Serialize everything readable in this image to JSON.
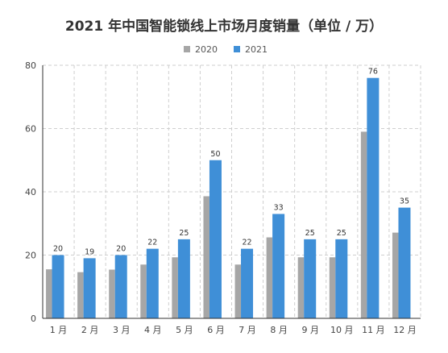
{
  "chart_data": {
    "type": "bar",
    "title": "2021 年中国智能锁线上市场月度销量（单位 / 万）",
    "categories": [
      "1 月",
      "2 月",
      "3 月",
      "4 月",
      "5 月",
      "6 月",
      "7 月",
      "8 月",
      "9 月",
      "10 月",
      "11 月",
      "12 月"
    ],
    "series": [
      {
        "name": "2020",
        "color": "#a6a6a6",
        "values": [
          15.5,
          14.6,
          15.4,
          17,
          19.3,
          38.6,
          17,
          25.6,
          19.3,
          19.3,
          59,
          27.1
        ],
        "labels": false
      },
      {
        "name": "2021",
        "color": "#3f8fd7",
        "values": [
          20,
          19,
          20,
          22,
          25,
          50,
          22,
          33,
          25,
          25,
          76,
          35
        ],
        "labels": true
      }
    ],
    "yticks": [
      "0",
      "20",
      "40",
      "60",
      "80"
    ],
    "ylim": [
      0,
      80
    ],
    "grid": true,
    "legend_position": "top-center"
  }
}
